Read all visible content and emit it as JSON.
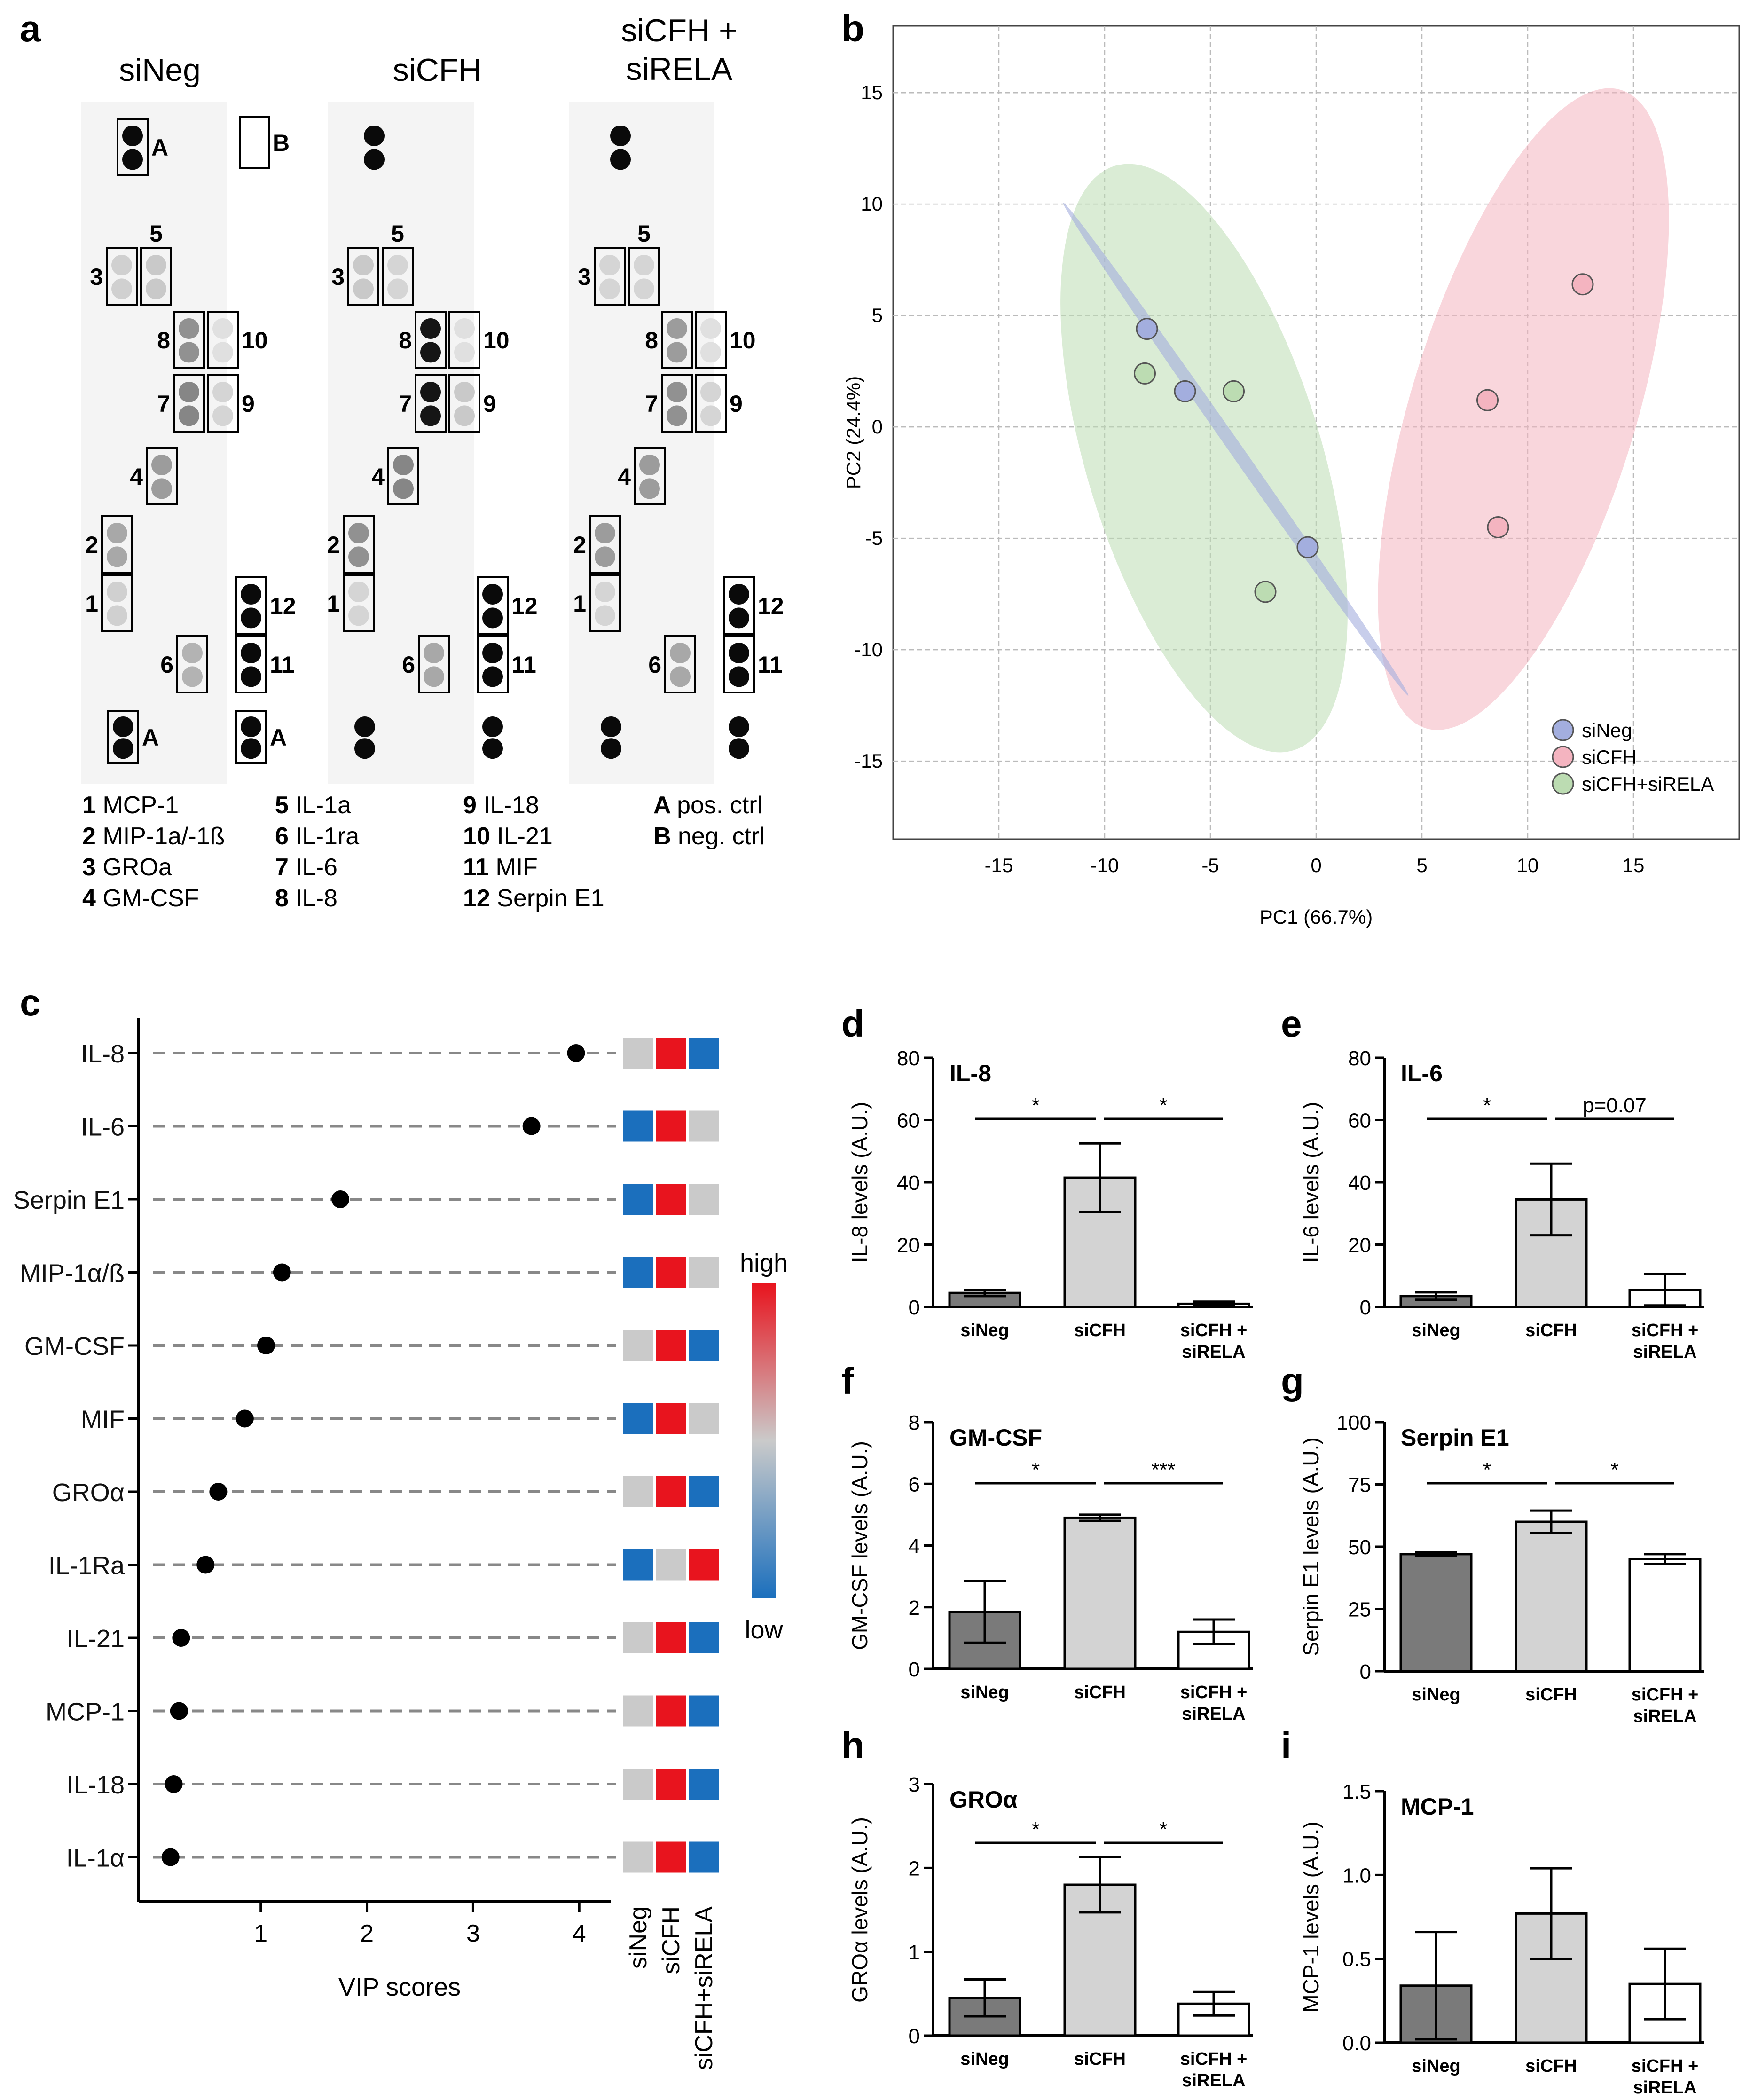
{
  "panels": {
    "a": "a",
    "b": "b",
    "c": "c",
    "d": "d",
    "e": "e",
    "f": "f",
    "g": "g",
    "h": "h",
    "i": "i"
  },
  "panel_a": {
    "conditions": [
      "siNeg",
      "siCFH",
      "siCFH +\nsiRELA"
    ],
    "box_labels": [
      "A",
      "B",
      "1",
      "2",
      "3",
      "4",
      "5",
      "6",
      "7",
      "8",
      "9",
      "10",
      "11",
      "12"
    ],
    "legend": [
      {
        "num": "1",
        "name": "MCP-1"
      },
      {
        "num": "2",
        "name": "MIP-1a/-1ß"
      },
      {
        "num": "3",
        "name": "GROa"
      },
      {
        "num": "4",
        "name": "GM-CSF"
      },
      {
        "num": "5",
        "name": "IL-1a"
      },
      {
        "num": "6",
        "name": "IL-1ra"
      },
      {
        "num": "7",
        "name": "IL-6"
      },
      {
        "num": "8",
        "name": "IL-8"
      },
      {
        "num": "9",
        "name": "IL-18"
      },
      {
        "num": "10",
        "name": "IL-21"
      },
      {
        "num": "11",
        "name": "MIF"
      },
      {
        "num": "12",
        "name": "Serpin E1"
      },
      {
        "num": "A",
        "name": "pos. ctrl"
      },
      {
        "num": "B",
        "name": "neg. ctrl"
      }
    ],
    "colors": {
      "spot": "#111111",
      "membrane": "#f4f4f4"
    }
  },
  "chart_data": [
    {
      "id": "b",
      "type": "scatter",
      "xlabel": "PC1 (66.7%)",
      "ylabel": "PC2 (24.4%)",
      "xlim": [
        -20,
        20
      ],
      "ylim": [
        -18.5,
        18
      ],
      "xticks": [
        -15,
        -10,
        -5,
        0,
        5,
        10,
        15
      ],
      "yticks": [
        -15,
        -10,
        -5,
        0,
        5,
        10,
        15
      ],
      "grid": true,
      "legend_position": "bottom-right",
      "series": [
        {
          "name": "siNeg",
          "color": "#a3aede",
          "points": [
            [
              -8,
              4.4
            ],
            [
              -6.2,
              1.6
            ],
            [
              -0.4,
              -5.4
            ]
          ]
        },
        {
          "name": "siCFH",
          "color": "#f4b4c0",
          "points": [
            [
              12.6,
              6.4
            ],
            [
              8.1,
              1.2
            ],
            [
              8.6,
              -4.5
            ]
          ]
        },
        {
          "name": "siCFH+siRELA",
          "color": "#bcdcb2",
          "points": [
            [
              -8.1,
              2.4
            ],
            [
              -3.9,
              1.6
            ],
            [
              -2.4,
              -7.4
            ]
          ]
        }
      ]
    },
    {
      "id": "c",
      "type": "scatter",
      "xlabel": "VIP scores",
      "xlim": [
        -0.15,
        4.3
      ],
      "xticks": [
        1,
        2,
        3,
        4
      ],
      "categories": [
        "IL-8",
        "IL-6",
        "Serpin E1",
        "MIP-1α/ß",
        "GM-CSF",
        "MIF",
        "GROα",
        "IL-1Ra",
        "IL-21",
        "MCP-1",
        "IL-18",
        "IL-1α"
      ],
      "values": [
        3.97,
        3.55,
        1.75,
        1.2,
        1.05,
        0.85,
        0.6,
        0.48,
        0.25,
        0.23,
        0.18,
        0.15
      ],
      "heatmap": {
        "columns": [
          "siNeg",
          "siCFH",
          "siCFH+siRELA"
        ],
        "rows": [
          [
            "mid",
            "high",
            "low"
          ],
          [
            "low",
            "high",
            "mid"
          ],
          [
            "low",
            "high",
            "mid"
          ],
          [
            "low",
            "high",
            "mid"
          ],
          [
            "mid",
            "high",
            "low"
          ],
          [
            "low",
            "high",
            "mid"
          ],
          [
            "mid",
            "high",
            "low"
          ],
          [
            "low",
            "mid",
            "high"
          ],
          [
            "mid",
            "high",
            "low"
          ],
          [
            "mid",
            "high",
            "low"
          ],
          [
            "mid",
            "high",
            "low"
          ],
          [
            "mid",
            "high",
            "low"
          ]
        ],
        "colors": {
          "high": "#e8141e",
          "mid": "#cacaca",
          "low": "#1b6fbd"
        },
        "scale_labels": {
          "high": "high",
          "low": "low"
        }
      }
    },
    {
      "id": "d",
      "type": "bar",
      "title": "IL-8",
      "ylabel": "IL-8 levels (A.U.)",
      "ylim": [
        0,
        80
      ],
      "yticks": [
        0,
        20,
        40,
        60,
        80
      ],
      "categories": [
        "siNeg",
        "siCFH",
        "siCFH +\nsiRELA"
      ],
      "values": [
        4.5,
        41.5,
        1
      ],
      "errors": [
        1,
        11,
        0.7
      ],
      "sig": [
        {
          "from": 0,
          "to": 1,
          "label": "*"
        },
        {
          "from": 1,
          "to": 2,
          "label": "*"
        }
      ]
    },
    {
      "id": "e",
      "type": "bar",
      "title": "IL-6",
      "ylabel": "IL-6 levels (A.U.)",
      "ylim": [
        0,
        80
      ],
      "yticks": [
        0,
        20,
        40,
        60,
        80
      ],
      "categories": [
        "siNeg",
        "siCFH",
        "siCFH +\nsiRELA"
      ],
      "values": [
        3.5,
        34.5,
        5.5
      ],
      "errors": [
        1.2,
        11.5,
        5
      ],
      "sig": [
        {
          "from": 0,
          "to": 1,
          "label": "*"
        },
        {
          "from": 1,
          "to": 2,
          "label": "p=0.07"
        }
      ]
    },
    {
      "id": "f",
      "type": "bar",
      "title": "GM-CSF",
      "ylabel": "GM-CSF levels (A.U.)",
      "ylim": [
        0,
        8
      ],
      "yticks": [
        0,
        2,
        4,
        6,
        8
      ],
      "categories": [
        "siNeg",
        "siCFH",
        "siCFH +\nsiRELA"
      ],
      "values": [
        1.85,
        4.9,
        1.2
      ],
      "errors": [
        1,
        0.1,
        0.4
      ],
      "sig": [
        {
          "from": 0,
          "to": 1,
          "label": "*"
        },
        {
          "from": 1,
          "to": 2,
          "label": "***"
        }
      ]
    },
    {
      "id": "g",
      "type": "bar",
      "title": "Serpin E1",
      "ylabel": "Serpin E1 levels (A.U.)",
      "ylim": [
        0,
        100
      ],
      "yticks": [
        0,
        25,
        50,
        75,
        100
      ],
      "categories": [
        "siNeg",
        "siCFH",
        "siCFH +\nsiRELA"
      ],
      "values": [
        47,
        60,
        45
      ],
      "errors": [
        0.7,
        4.5,
        2
      ],
      "sig": [
        {
          "from": 0,
          "to": 1,
          "label": "*"
        },
        {
          "from": 1,
          "to": 2,
          "label": "*"
        }
      ]
    },
    {
      "id": "h",
      "type": "bar",
      "title": "GROα",
      "ylabel": "GROα levels (A.U.)",
      "ylim": [
        0,
        3
      ],
      "yticks": [
        0,
        1,
        2,
        3
      ],
      "categories": [
        "siNeg",
        "siCFH",
        "siCFH +\nsiRELA"
      ],
      "values": [
        0.45,
        1.8,
        0.38
      ],
      "errors": [
        0.22,
        0.33,
        0.14
      ],
      "sig": [
        {
          "from": 0,
          "to": 1,
          "label": "*"
        },
        {
          "from": 1,
          "to": 2,
          "label": "*"
        }
      ]
    },
    {
      "id": "i",
      "type": "bar",
      "title": "MCP-1",
      "ylabel": "MCP-1 levels (A.U.)",
      "ylim": [
        0,
        1.5
      ],
      "yticks": [
        0,
        0.5,
        1.0,
        1.5
      ],
      "yticklabels": [
        "0.0",
        "0.5",
        "1.0",
        "1.5"
      ],
      "categories": [
        "siNeg",
        "siCFH",
        "siCFH +\nsiRELA"
      ],
      "values": [
        0.34,
        0.77,
        0.35
      ],
      "errors": [
        0.32,
        0.27,
        0.21
      ],
      "sig": []
    }
  ],
  "bar_colors": [
    "#7a7a7a",
    "#d3d3d3",
    "#ffffff"
  ]
}
